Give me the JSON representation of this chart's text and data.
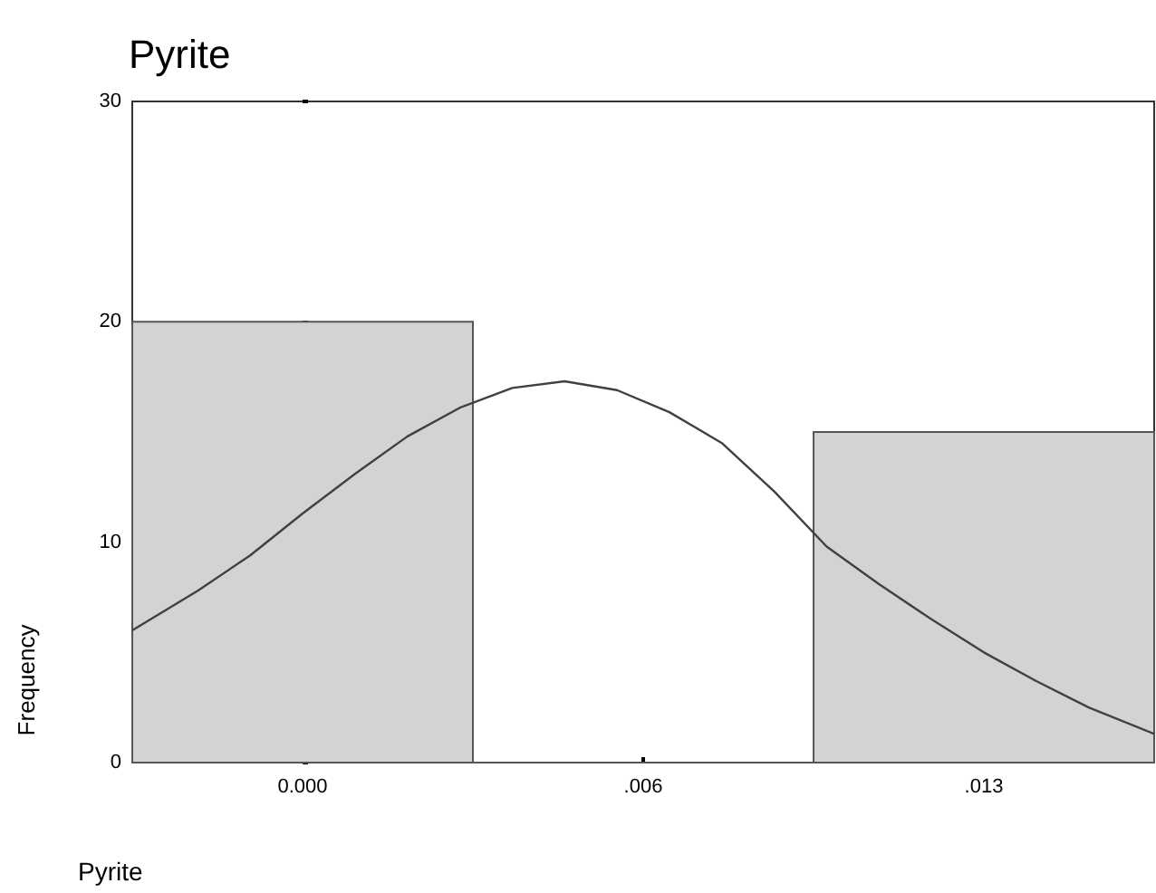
{
  "chart_data": {
    "type": "histogram",
    "title": "Pyrite",
    "xlabel": "Pyrite",
    "ylabel": "Frequency",
    "bins": [
      -0.00325,
      0.00325,
      0.00975,
      0.01625
    ],
    "series": [
      {
        "color": "#d3d3d3",
        "values": [
          20,
          0,
          15
        ]
      },
      {
        "type": "line",
        "color": "#404040",
        "x": [
          -0.00325,
          -0.002,
          -0.001,
          0,
          0.001,
          0.002,
          0.003,
          0.004,
          0.005,
          0.006,
          0.007,
          0.008,
          0.009,
          0.01,
          0.011,
          0.012,
          0.013,
          0.014,
          0.015,
          0.01625
        ],
        "values": [
          6.0,
          7.8,
          9.4,
          11.3,
          13.1,
          14.8,
          16.1,
          17.0,
          17.3,
          16.9,
          15.9,
          14.5,
          12.3,
          9.8,
          8.1,
          6.5,
          5.0,
          3.7,
          2.5,
          1.3
        ]
      }
    ],
    "xlim": [
      -0.00325,
      0.01625
    ],
    "xticks": [
      {
        "value": 0,
        "label": "0.000"
      },
      {
        "value": 0.0065,
        "label": ".006"
      },
      {
        "value": 0.013,
        "label": ".013"
      }
    ],
    "ylim": [
      0,
      30
    ],
    "yticks": [
      0,
      10,
      20,
      30
    ],
    "grid": false,
    "marker": "none"
  }
}
